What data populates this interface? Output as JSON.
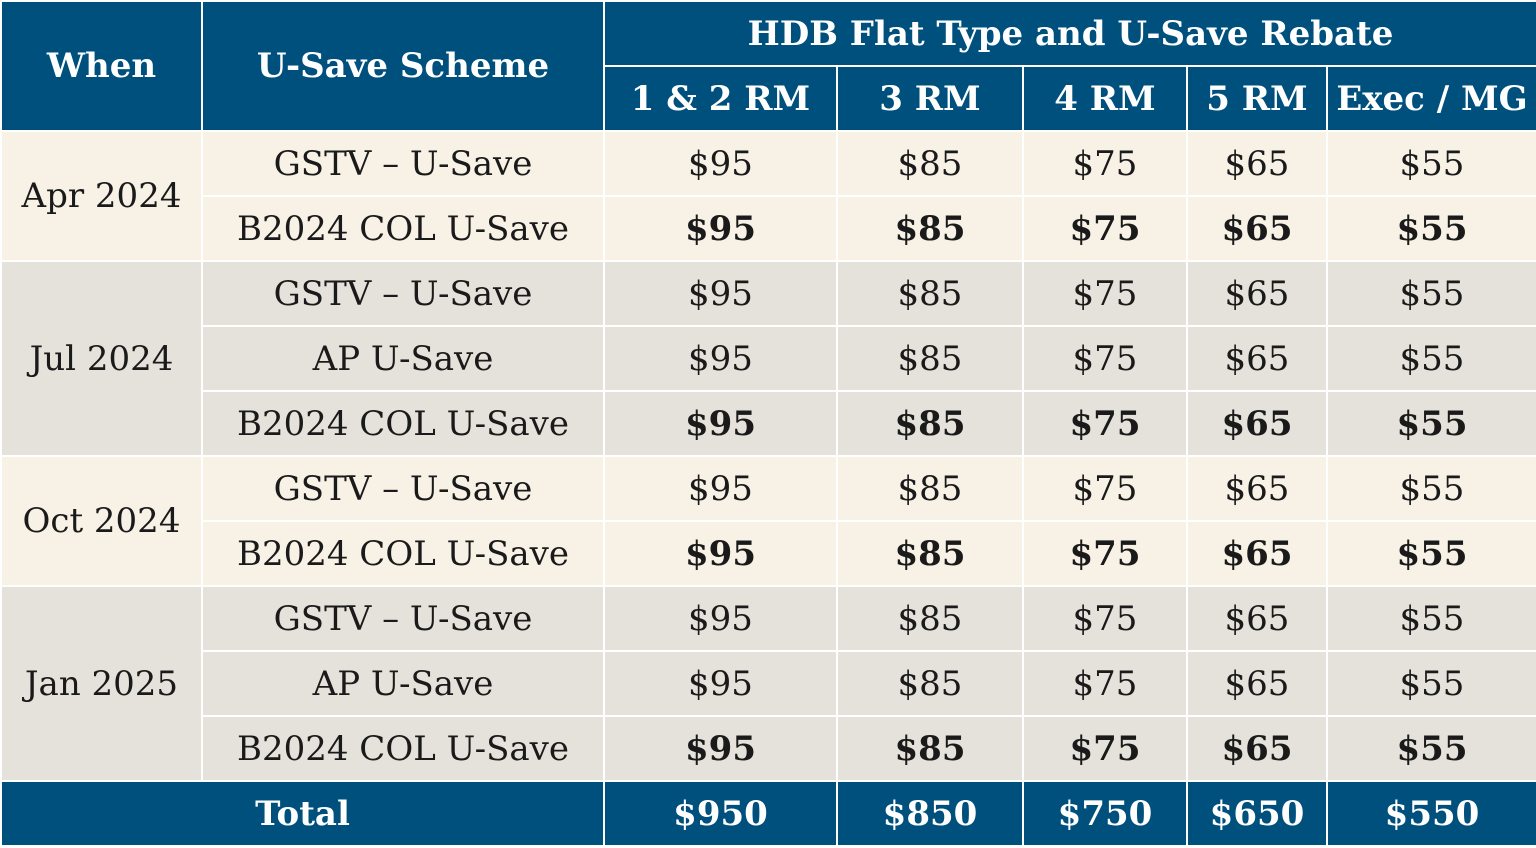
{
  "header": {
    "when": "When",
    "scheme": "U-Save Scheme",
    "group": "HDB Flat Type and U-Save Rebate",
    "flat_types": [
      "1 & 2 RM",
      "3 RM",
      "4 RM",
      "5 RM",
      "Exec / MG"
    ]
  },
  "groups": [
    {
      "when": "Apr 2024",
      "rows": [
        {
          "scheme": "GSTV – U-Save",
          "bold": false,
          "amounts": [
            "$95",
            "$85",
            "$75",
            "$65",
            "$55"
          ]
        },
        {
          "scheme": "B2024 COL U-Save",
          "bold": true,
          "amounts": [
            "$95",
            "$85",
            "$75",
            "$65",
            "$55"
          ]
        }
      ]
    },
    {
      "when": "Jul 2024",
      "rows": [
        {
          "scheme": "GSTV – U-Save",
          "bold": false,
          "amounts": [
            "$95",
            "$85",
            "$75",
            "$65",
            "$55"
          ]
        },
        {
          "scheme": "AP U-Save",
          "bold": false,
          "amounts": [
            "$95",
            "$85",
            "$75",
            "$65",
            "$55"
          ]
        },
        {
          "scheme": "B2024 COL U-Save",
          "bold": true,
          "amounts": [
            "$95",
            "$85",
            "$75",
            "$65",
            "$55"
          ]
        }
      ]
    },
    {
      "when": "Oct 2024",
      "rows": [
        {
          "scheme": "GSTV – U-Save",
          "bold": false,
          "amounts": [
            "$95",
            "$85",
            "$75",
            "$65",
            "$55"
          ]
        },
        {
          "scheme": "B2024 COL U-Save",
          "bold": true,
          "amounts": [
            "$95",
            "$85",
            "$75",
            "$65",
            "$55"
          ]
        }
      ]
    },
    {
      "when": "Jan 2025",
      "rows": [
        {
          "scheme": "GSTV – U-Save",
          "bold": false,
          "amounts": [
            "$95",
            "$85",
            "$75",
            "$65",
            "$55"
          ]
        },
        {
          "scheme": "AP U-Save",
          "bold": false,
          "amounts": [
            "$95",
            "$85",
            "$75",
            "$65",
            "$55"
          ]
        },
        {
          "scheme": "B2024 COL U-Save",
          "bold": true,
          "amounts": [
            "$95",
            "$85",
            "$75",
            "$65",
            "$55"
          ]
        }
      ]
    }
  ],
  "total": {
    "label": "Total",
    "amounts": [
      "$950",
      "$850",
      "$750",
      "$650",
      "$550"
    ]
  },
  "colors": {
    "header_bg": "#00507e",
    "row_light": "#f7f1e6",
    "row_dark": "#e4e2da"
  }
}
